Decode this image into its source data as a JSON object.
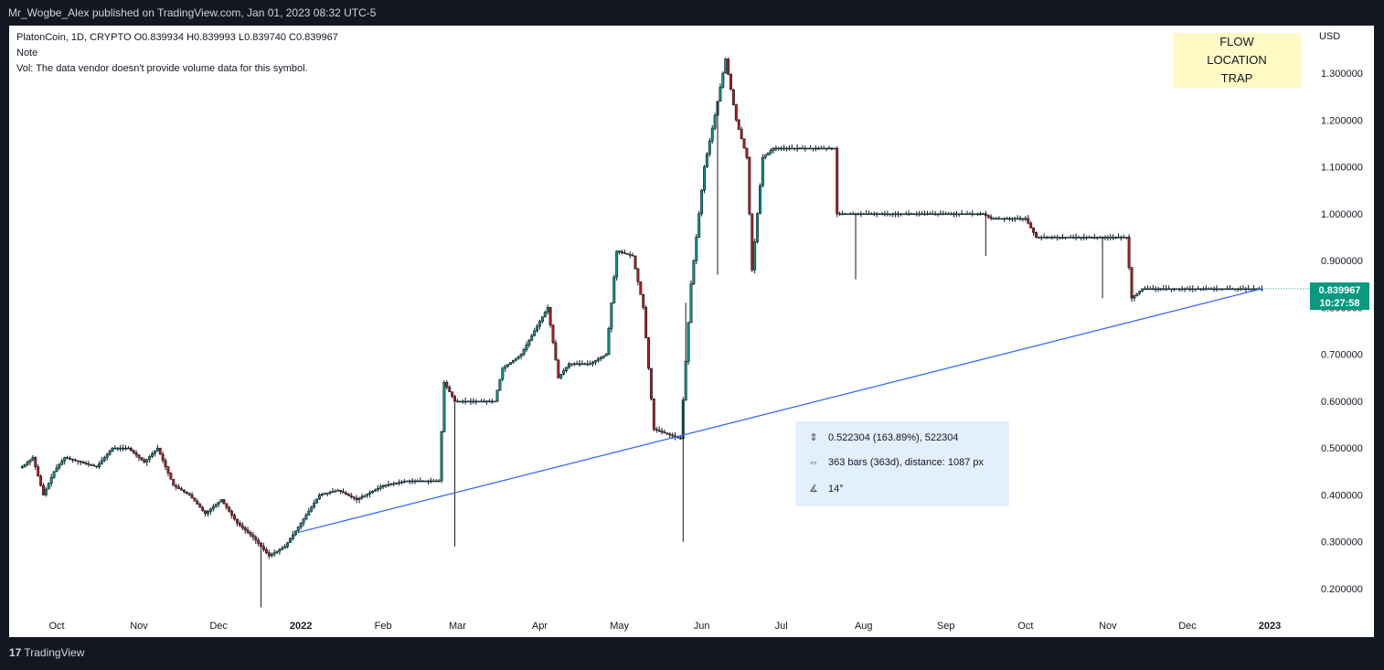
{
  "header": {
    "published_line": "Mr_Wogbe_Alex published on TradingView.com, Jan 01, 2023 08:32 UTC-5"
  },
  "legend": {
    "symbol_line": "PlatonCoin, 1D, CRYPTO  O0.839934  H0.839993  L0.839740  C0.839967",
    "note": "Note",
    "vol": "Vol: The data vendor doesn't provide volume data for this symbol."
  },
  "labels": {
    "flow": "FLOW",
    "location": "LOCATION",
    "trap": "TRAP"
  },
  "axis": {
    "currency": "USD"
  },
  "last_price": {
    "value": "0.839967",
    "countdown": "10:27:58"
  },
  "measure": {
    "price_change": "0.522304 (163.89%), 522304",
    "bars": "363 bars (363d), distance: 1087 px",
    "angle": "14°",
    "icons": [
      "vertical-range-icon",
      "horizontal-range-icon",
      "angle-icon"
    ]
  },
  "footer": {
    "brand": "TradingView",
    "logo": "17"
  },
  "colors": {
    "background": "#131722",
    "up": "#089981",
    "down": "#b71c1c",
    "trendline": "#2962ff",
    "label_bg": "#fff9c4",
    "measure_bg": "#e3effd"
  },
  "chart_data": {
    "type": "candlestick",
    "title": "PlatonCoin, 1D, CRYPTO",
    "ylabel": "USD",
    "ylim": [
      0.15,
      1.35
    ],
    "x_ticks": [
      {
        "label": "Oct",
        "date": "2021-10-01"
      },
      {
        "label": "Nov",
        "date": "2021-11-01"
      },
      {
        "label": "Dec",
        "date": "2021-12-01"
      },
      {
        "label": "2022",
        "date": "2022-01-01",
        "bold": true
      },
      {
        "label": "Feb",
        "date": "2022-02-01"
      },
      {
        "label": "Mar",
        "date": "2022-03-01"
      },
      {
        "label": "Apr",
        "date": "2022-04-01"
      },
      {
        "label": "May",
        "date": "2022-05-01"
      },
      {
        "label": "Jun",
        "date": "2022-06-01"
      },
      {
        "label": "Jul",
        "date": "2022-07-01"
      },
      {
        "label": "Aug",
        "date": "2022-08-01"
      },
      {
        "label": "Sep",
        "date": "2022-09-01"
      },
      {
        "label": "Oct",
        "date": "2022-10-01"
      },
      {
        "label": "Nov",
        "date": "2022-11-01"
      },
      {
        "label": "Dec",
        "date": "2022-12-01"
      },
      {
        "label": "2023",
        "date": "2023-01-01",
        "bold": true
      }
    ],
    "y_ticks": [
      {
        "value": 0.2,
        "label": "0.200000"
      },
      {
        "value": 0.3,
        "label": "0.300000"
      },
      {
        "value": 0.4,
        "label": "0.400000"
      },
      {
        "value": 0.5,
        "label": "0.500000"
      },
      {
        "value": 0.6,
        "label": "0.600000"
      },
      {
        "value": 0.7,
        "label": "0.700000"
      },
      {
        "value": 0.8,
        "label": "0.800000"
      },
      {
        "value": 0.9,
        "label": "0.900000"
      },
      {
        "value": 1.0,
        "label": "1.000000"
      },
      {
        "value": 1.1,
        "label": "1.100000"
      },
      {
        "value": 1.2,
        "label": "1.200000"
      },
      {
        "value": 1.3,
        "label": "1.300000"
      }
    ],
    "trendline": {
      "from": {
        "date": "2021-12-31",
        "price": 0.32
      },
      "to": {
        "date": "2022-12-29",
        "price": 0.84
      }
    },
    "last_price_line": 0.839967,
    "price_path": [
      [
        "2021-09-18",
        0.46
      ],
      [
        "2021-09-22",
        0.48
      ],
      [
        "2021-09-26",
        0.4
      ],
      [
        "2021-09-30",
        0.45
      ],
      [
        "2021-10-04",
        0.48
      ],
      [
        "2021-10-10",
        0.47
      ],
      [
        "2021-10-16",
        0.46
      ],
      [
        "2021-10-22",
        0.5
      ],
      [
        "2021-10-28",
        0.5
      ],
      [
        "2021-11-03",
        0.47
      ],
      [
        "2021-11-08",
        0.5
      ],
      [
        "2021-11-14",
        0.42
      ],
      [
        "2021-11-20",
        0.4
      ],
      [
        "2021-11-26",
        0.36
      ],
      [
        "2021-12-02",
        0.39
      ],
      [
        "2021-12-08",
        0.34
      ],
      [
        "2021-12-14",
        0.31
      ],
      [
        "2021-12-20",
        0.27
      ],
      [
        "2021-12-26",
        0.29
      ],
      [
        "2022-01-01",
        0.34
      ],
      [
        "2022-01-08",
        0.4
      ],
      [
        "2022-01-15",
        0.41
      ],
      [
        "2022-01-22",
        0.39
      ],
      [
        "2022-02-01",
        0.42
      ],
      [
        "2022-02-10",
        0.43
      ],
      [
        "2022-02-22",
        0.43
      ],
      [
        "2022-02-24",
        0.64
      ],
      [
        "2022-02-28",
        0.6
      ],
      [
        "2022-03-03",
        0.6
      ],
      [
        "2022-03-15",
        0.6
      ],
      [
        "2022-03-18",
        0.67
      ],
      [
        "2022-03-25",
        0.7
      ],
      [
        "2022-04-01",
        0.77
      ],
      [
        "2022-04-04",
        0.8
      ],
      [
        "2022-04-08",
        0.65
      ],
      [
        "2022-04-12",
        0.68
      ],
      [
        "2022-04-20",
        0.68
      ],
      [
        "2022-04-26",
        0.7
      ],
      [
        "2022-04-30",
        0.92
      ],
      [
        "2022-05-06",
        0.91
      ],
      [
        "2022-05-10",
        0.8
      ],
      [
        "2022-05-14",
        0.54
      ],
      [
        "2022-05-24",
        0.52
      ],
      [
        "2022-05-28",
        0.85
      ],
      [
        "2022-06-02",
        1.1
      ],
      [
        "2022-06-06",
        1.21
      ],
      [
        "2022-06-10",
        1.33
      ],
      [
        "2022-06-14",
        1.2
      ],
      [
        "2022-06-18",
        1.12
      ],
      [
        "2022-06-20",
        0.88
      ],
      [
        "2022-06-24",
        1.12
      ],
      [
        "2022-06-28",
        1.14
      ],
      [
        "2022-07-15",
        1.14
      ],
      [
        "2022-07-21",
        1.14
      ],
      [
        "2022-07-22",
        1.0
      ],
      [
        "2022-08-05",
        1.0
      ],
      [
        "2022-09-15",
        1.0
      ],
      [
        "2022-09-18",
        0.99
      ],
      [
        "2022-10-01",
        0.99
      ],
      [
        "2022-10-05",
        0.95
      ],
      [
        "2022-10-20",
        0.95
      ],
      [
        "2022-11-08",
        0.95
      ],
      [
        "2022-11-10",
        0.82
      ],
      [
        "2022-11-14",
        0.84
      ],
      [
        "2022-12-29",
        0.84
      ]
    ],
    "notable_wicks": [
      {
        "date": "2022-02-28",
        "low": 0.29
      },
      {
        "date": "2022-05-25",
        "low": 0.3
      },
      {
        "date": "2021-12-17",
        "low": 0.16
      },
      {
        "date": "2022-05-26",
        "high": 0.81
      },
      {
        "date": "2022-07-29",
        "low": 0.86
      },
      {
        "date": "2022-10-30",
        "low": 0.82
      },
      {
        "date": "2022-09-16",
        "low": 0.91
      },
      {
        "date": "2022-06-07",
        "low": 0.87
      }
    ]
  }
}
